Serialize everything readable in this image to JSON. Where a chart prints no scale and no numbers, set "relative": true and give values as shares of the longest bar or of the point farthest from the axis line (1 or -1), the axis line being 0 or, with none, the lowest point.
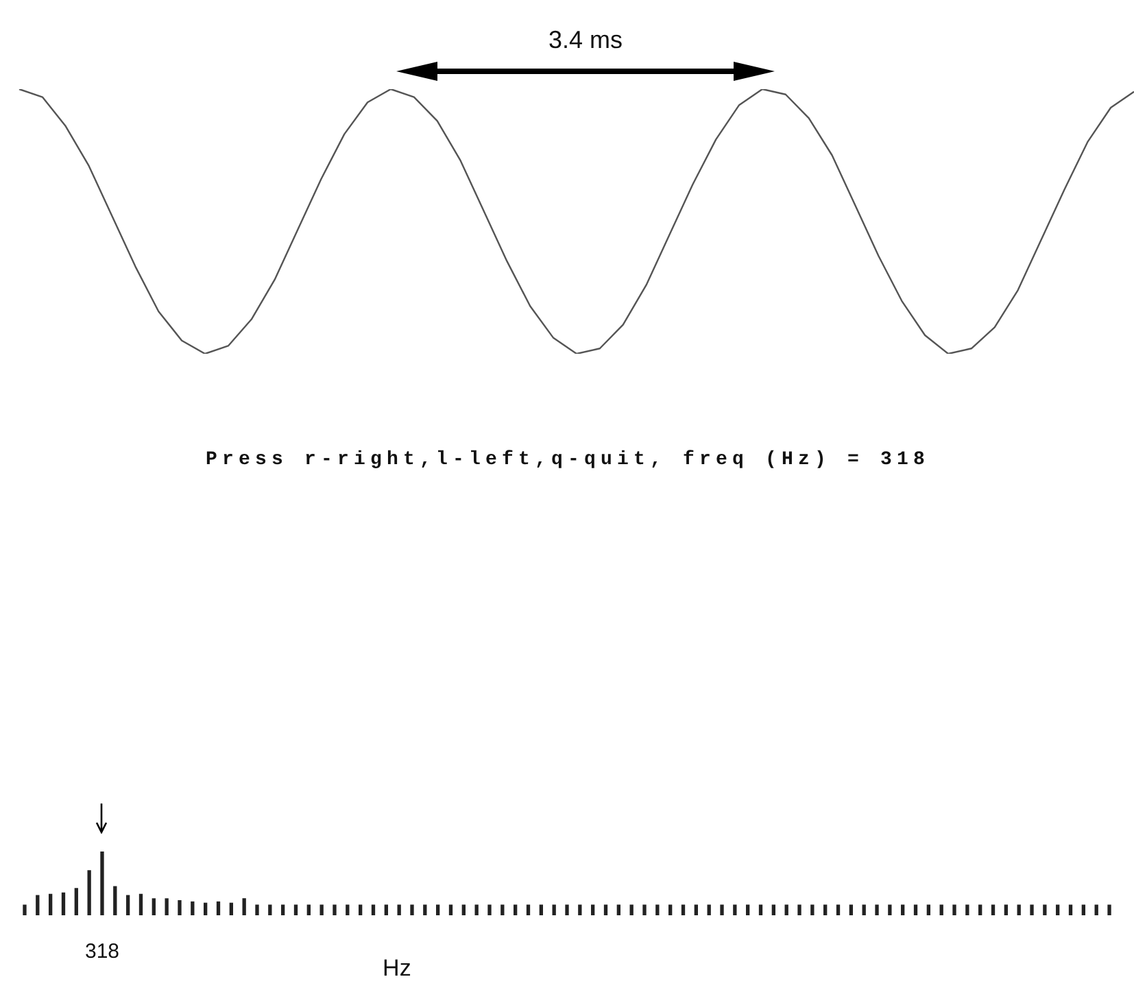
{
  "chart_data": [
    {
      "type": "line",
      "relative": true,
      "color": "#555555",
      "categories": [
        null,
        null,
        null,
        null,
        null,
        null,
        null,
        null,
        null,
        null,
        null,
        null,
        null,
        null,
        null,
        null,
        null,
        null,
        null,
        null,
        null,
        null,
        null,
        null,
        null,
        null,
        null,
        null,
        null,
        null,
        null,
        null,
        null,
        null,
        null,
        null,
        null,
        null,
        null,
        null,
        null,
        null,
        null,
        null,
        null,
        null,
        null,
        null,
        null
      ],
      "values": [
        1.0,
        0.97,
        0.86,
        0.71,
        0.52,
        0.33,
        0.16,
        0.05,
        0.0,
        0.03,
        0.13,
        0.28,
        0.47,
        0.66,
        0.83,
        0.95,
        1.0,
        0.97,
        0.88,
        0.73,
        0.54,
        0.35,
        0.18,
        0.06,
        0.0,
        0.02,
        0.11,
        0.26,
        0.45,
        0.64,
        0.81,
        0.94,
        1.0,
        0.98,
        0.89,
        0.75,
        0.56,
        0.37,
        0.2,
        0.07,
        0.0,
        0.02,
        0.1,
        0.24,
        0.43,
        0.62,
        0.8,
        0.93,
        0.99
      ],
      "annotations": [
        "3.4 ms"
      ]
    },
    {
      "type": "bar",
      "relative": true,
      "color": "#222222",
      "title": "Press r-right,l-left,q-quit, freq (Hz) = 318",
      "xlabel": "Hz",
      "categories": [
        null,
        null,
        null,
        null,
        null,
        null,
        "318",
        null,
        null,
        null,
        null,
        null,
        null,
        null,
        null,
        null,
        null,
        null,
        null,
        null,
        null,
        null,
        null,
        null,
        null,
        null,
        null,
        null,
        null,
        null,
        null,
        null,
        null,
        null,
        null,
        null,
        null,
        null,
        null,
        null,
        null,
        null,
        null,
        null,
        null,
        null,
        null,
        null,
        null,
        null,
        null,
        null,
        null,
        null,
        null,
        null,
        null,
        null,
        null,
        null,
        null,
        null,
        null,
        null,
        null,
        null,
        null,
        null,
        null,
        null,
        null,
        null,
        null,
        null,
        null,
        null,
        null,
        null,
        null,
        null,
        null,
        null,
        null,
        null,
        null
      ],
      "values": [
        0.16,
        0.31,
        0.33,
        0.35,
        0.42,
        0.7,
        1.0,
        0.45,
        0.31,
        0.33,
        0.26,
        0.26,
        0.23,
        0.21,
        0.19,
        0.21,
        0.19,
        0.26,
        0.16,
        0.16,
        0.16,
        0.16,
        0.16,
        0.16,
        0.16,
        0.16,
        0.16,
        0.16,
        0.16,
        0.16,
        0.16,
        0.16,
        0.16,
        0.16,
        0.16,
        0.16,
        0.16,
        0.16,
        0.16,
        0.16,
        0.16,
        0.16,
        0.16,
        0.16,
        0.16,
        0.16,
        0.16,
        0.16,
        0.16,
        0.16,
        0.16,
        0.16,
        0.16,
        0.16,
        0.16,
        0.16,
        0.16,
        0.16,
        0.16,
        0.16,
        0.16,
        0.16,
        0.16,
        0.16,
        0.16,
        0.16,
        0.16,
        0.16,
        0.16,
        0.16,
        0.16,
        0.16,
        0.16,
        0.16,
        0.16,
        0.16,
        0.16,
        0.16,
        0.16,
        0.16,
        0.16,
        0.16,
        0.16,
        0.16,
        0.16
      ]
    }
  ]
}
